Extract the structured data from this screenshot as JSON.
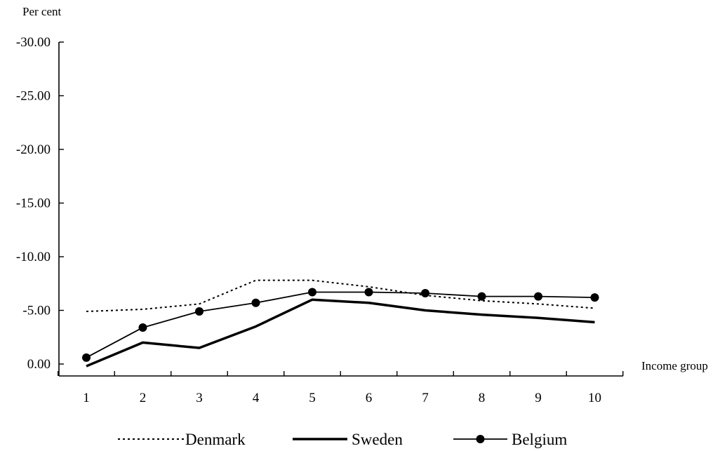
{
  "chart_data": {
    "type": "line",
    "ylabel": "Per cent",
    "xlabel": "Income group",
    "categories": [
      "1",
      "2",
      "3",
      "4",
      "5",
      "6",
      "7",
      "8",
      "9",
      "10"
    ],
    "y_ticks": [
      "-30.00",
      "-25.00",
      "-20.00",
      "-15.00",
      "-10.00",
      "-5.00",
      "0.00"
    ],
    "ylim": [
      -30,
      0
    ],
    "y_axis_inverted": true,
    "grid": false,
    "legend_position": "bottom",
    "series": [
      {
        "name": "Denmark",
        "style": "dotted",
        "color": "#000000",
        "values": [
          -4.9,
          -5.1,
          -5.6,
          -7.8,
          -7.8,
          -7.2,
          -6.4,
          -5.9,
          -5.6,
          -5.2
        ]
      },
      {
        "name": "Sweden",
        "style": "thick",
        "color": "#000000",
        "values": [
          0.2,
          -2.0,
          -1.5,
          -3.5,
          -6.0,
          -5.7,
          -5.0,
          -4.6,
          -4.3,
          -3.9
        ]
      },
      {
        "name": "Belgium",
        "style": "line-with-markers",
        "color": "#000000",
        "values": [
          -0.6,
          -3.4,
          -4.9,
          -5.7,
          -6.7,
          -6.7,
          -6.6,
          -6.3,
          -6.3,
          -6.2
        ]
      }
    ]
  }
}
